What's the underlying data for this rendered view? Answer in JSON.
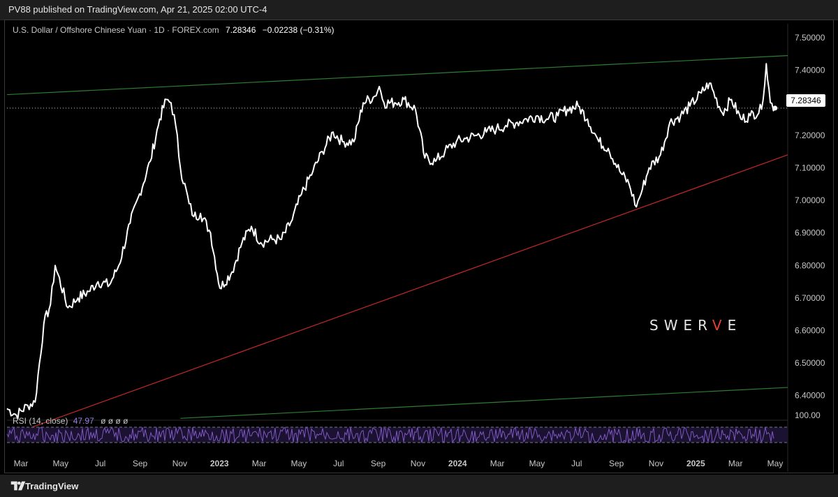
{
  "header": {
    "published": "PV88 published on TradingView.com, Apr 21, 2025 02:00 UTC-4"
  },
  "legend": {
    "symbol": "U.S. Dollar / Offshore Chinese Yuan · 1D · FOREX.com",
    "price": "7.28346",
    "change": "−0.02238 (−0.31%)"
  },
  "rsi_legend": {
    "label": "RSI (14, close)",
    "value": "47.97",
    "placeholders": "ø ø ø ø"
  },
  "price_tag": "7.28346",
  "watermark": {
    "pre": "SWER",
    "accent": "V",
    "post": "E"
  },
  "footer": {
    "brand": "TradingView"
  },
  "colors": {
    "price": "#ffffff",
    "upper_channel": "#2e7d32",
    "support": "#c62828",
    "rsi": "#7e57c2"
  },
  "chart_data": {
    "type": "line",
    "series": [
      {
        "values_date": [
          "2022-03-01",
          "2022-03-15",
          "2022-04-01",
          "2022-04-12",
          "2022-04-25",
          "2022-05-05",
          "2022-05-12",
          "2022-05-31",
          "2022-06-15",
          "2022-07-01",
          "2022-07-15",
          "2022-08-01",
          "2022-08-15",
          "2022-09-01",
          "2022-09-15",
          "2022-10-01",
          "2022-10-15",
          "2022-10-25",
          "2022-11-01",
          "2022-11-08",
          "2022-11-15",
          "2022-11-28",
          "2022-12-05",
          "2022-12-15",
          "2022-12-30",
          "2023-01-13",
          "2023-01-31",
          "2023-02-15",
          "2023-03-01",
          "2023-03-15",
          "2023-04-01",
          "2023-04-15",
          "2023-05-01",
          "2023-05-15",
          "2023-06-01",
          "2023-06-15",
          "2023-07-01",
          "2023-07-15",
          "2023-08-01",
          "2023-08-15",
          "2023-09-01",
          "2023-09-08",
          "2023-09-15",
          "2023-10-01",
          "2023-10-15",
          "2023-11-01",
          "2023-11-15",
          "2023-12-01",
          "2023-12-15",
          "2024-01-01",
          "2024-01-15",
          "2024-02-01",
          "2024-02-15",
          "2024-03-01",
          "2024-03-15",
          "2024-04-01",
          "2024-04-15",
          "2024-05-01",
          "2024-05-15",
          "2024-06-01",
          "2024-06-15",
          "2024-07-01",
          "2024-07-15",
          "2024-08-01",
          "2024-08-15",
          "2024-09-01",
          "2024-09-15",
          "2024-09-26",
          "2024-10-01",
          "2024-10-15",
          "2024-11-01",
          "2024-11-15",
          "2024-12-01",
          "2024-12-15",
          "2025-01-01",
          "2025-01-13",
          "2025-02-01",
          "2025-02-15",
          "2025-03-01",
          "2025-03-15",
          "2025-04-01",
          "2025-04-08",
          "2025-04-14",
          "2025-04-21"
        ],
        "values": [
          6.36,
          6.34,
          6.37,
          6.38,
          6.62,
          6.68,
          6.8,
          6.67,
          6.7,
          6.72,
          6.75,
          6.74,
          6.8,
          6.93,
          7.02,
          7.12,
          7.25,
          7.31,
          7.3,
          7.23,
          7.1,
          6.99,
          6.95,
          6.96,
          6.9,
          6.73,
          6.78,
          6.87,
          6.92,
          6.87,
          6.88,
          6.88,
          6.94,
          7.02,
          7.09,
          7.15,
          7.21,
          7.18,
          7.18,
          7.3,
          7.32,
          7.35,
          7.3,
          7.3,
          7.31,
          7.28,
          7.13,
          7.12,
          7.15,
          7.18,
          7.19,
          7.2,
          7.21,
          7.22,
          7.23,
          7.24,
          7.25,
          7.26,
          7.25,
          7.26,
          7.28,
          7.29,
          7.25,
          7.18,
          7.16,
          7.09,
          7.05,
          6.98,
          7.01,
          7.1,
          7.14,
          7.24,
          7.26,
          7.29,
          7.33,
          7.36,
          7.27,
          7.31,
          7.25,
          7.26,
          7.28,
          7.42,
          7.3,
          7.28346
        ]
      }
    ],
    "x_axis_ticks": [
      "Mar",
      "May",
      "Jul",
      "Sep",
      "Nov",
      "2023",
      "Mar",
      "May",
      "Jul",
      "Sep",
      "Nov",
      "2024",
      "Mar",
      "May",
      "Jul",
      "Sep",
      "Nov",
      "2025",
      "Mar",
      "May"
    ],
    "x_range": [
      "2022-03-01",
      "2025-05-10"
    ],
    "y_axis_ticks": [
      "7.50000",
      "7.40000",
      "7.30000",
      "7.20000",
      "7.10000",
      "7.00000",
      "6.90000",
      "6.80000",
      "6.70000",
      "6.60000",
      "6.50000",
      "6.40000"
    ],
    "ylim": [
      6.35,
      7.53
    ],
    "trendlines": [
      {
        "x": [
          "2022-03-01",
          "2025-05-10"
        ],
        "y": [
          7.325,
          7.445
        ]
      },
      {
        "x": [
          "2022-03-01",
          "2025-05-10"
        ],
        "y": [
          6.275,
          7.14
        ]
      },
      {
        "x": [
          "2022-11-15",
          "2025-05-10"
        ],
        "y": [
          6.33,
          6.425
        ]
      }
    ],
    "rsi": {
      "label": "RSI (14, close)",
      "value": 47.97,
      "upper_tick": "100.00"
    }
  }
}
